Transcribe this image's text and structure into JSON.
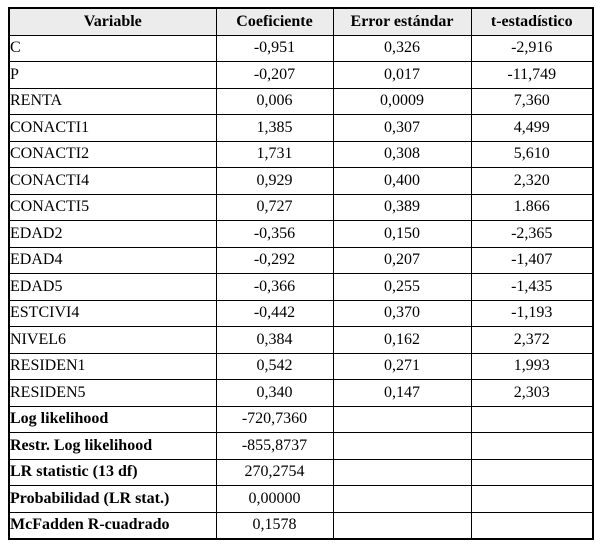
{
  "colors": {
    "header_background": "#ececec",
    "border": "#000000",
    "text": "#000000",
    "page_background": "#ffffff"
  },
  "table": {
    "columns": [
      "Variable",
      "Coeficiente",
      "Error estándar",
      "t-estadístico"
    ],
    "rows": [
      {
        "variable": "C",
        "bold": false,
        "coeficiente": "-0,951",
        "error": "0,326",
        "t": "-2,916"
      },
      {
        "variable": "P",
        "bold": false,
        "coeficiente": "-0,207",
        "error": "0,017",
        "t": "-11,749"
      },
      {
        "variable": "RENTA",
        "bold": false,
        "coeficiente": "0,006",
        "error": "0,0009",
        "t": "7,360"
      },
      {
        "variable": "CONACTI1",
        "bold": false,
        "coeficiente": "1,385",
        "error": "0,307",
        "t": "4,499"
      },
      {
        "variable": "CONACTI2",
        "bold": false,
        "coeficiente": "1,731",
        "error": "0,308",
        "t": "5,610"
      },
      {
        "variable": "CONACTI4",
        "bold": false,
        "coeficiente": "0,929",
        "error": "0,400",
        "t": "2,320"
      },
      {
        "variable": "CONACTI5",
        "bold": false,
        "coeficiente": "0,727",
        "error": "0,389",
        "t": "1.866"
      },
      {
        "variable": "EDAD2",
        "bold": false,
        "coeficiente": "-0,356",
        "error": "0,150",
        "t": "-2,365"
      },
      {
        "variable": "EDAD4",
        "bold": false,
        "coeficiente": "-0,292",
        "error": "0,207",
        "t": "-1,407"
      },
      {
        "variable": "EDAD5",
        "bold": false,
        "coeficiente": "-0,366",
        "error": "0,255",
        "t": "-1,435"
      },
      {
        "variable": "ESTCIVI4",
        "bold": false,
        "coeficiente": "-0,442",
        "error": "0,370",
        "t": "-1,193"
      },
      {
        "variable": "NIVEL6",
        "bold": false,
        "coeficiente": "0,384",
        "error": "0,162",
        "t": "2,372"
      },
      {
        "variable": "RESIDEN1",
        "bold": false,
        "coeficiente": "0,542",
        "error": "0,271",
        "t": "1,993"
      },
      {
        "variable": "RESIDEN5",
        "bold": false,
        "coeficiente": "0,340",
        "error": "0,147",
        "t": "2,303"
      },
      {
        "variable": "Log likelihood",
        "bold": true,
        "coeficiente": "-720,7360",
        "error": "",
        "t": ""
      },
      {
        "variable": "Restr. Log likelihood",
        "bold": true,
        "coeficiente": "-855,8737",
        "error": "",
        "t": ""
      },
      {
        "variable": "LR statistic (13 df)",
        "bold": true,
        "coeficiente": "270,2754",
        "error": "",
        "t": ""
      },
      {
        "variable": "Probabilidad (LR stat.)",
        "bold": true,
        "coeficiente": "0,00000",
        "error": "",
        "t": ""
      },
      {
        "variable": "McFadden R-cuadrado",
        "bold": true,
        "coeficiente": "0,1578",
        "error": "",
        "t": ""
      }
    ]
  }
}
